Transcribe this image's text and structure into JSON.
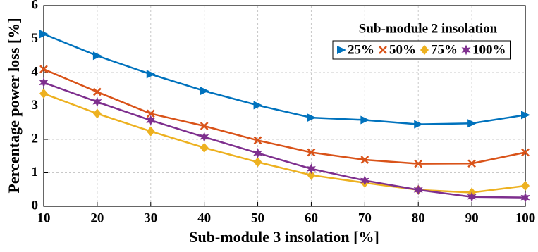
{
  "chart_data": {
    "type": "line",
    "x_label": "Sub-module 3 insolation [%]",
    "y_label": "Percentage power loss [%]",
    "legend_title": "Sub-module 2 insolation",
    "legend_title_color": "#0000e6",
    "x": [
      10,
      20,
      30,
      40,
      50,
      60,
      70,
      80,
      90,
      100
    ],
    "series": [
      {
        "name": "25%",
        "color": "#0072bd",
        "marker": "triangle",
        "values": [
          5.15,
          4.5,
          3.95,
          3.45,
          3.02,
          2.65,
          2.58,
          2.45,
          2.48,
          2.73
        ]
      },
      {
        "name": "50%",
        "color": "#d95319",
        "marker": "x",
        "values": [
          4.1,
          3.42,
          2.77,
          2.4,
          1.97,
          1.61,
          1.39,
          1.27,
          1.28,
          1.61
        ]
      },
      {
        "name": "75%",
        "color": "#edb120",
        "marker": "diamond",
        "values": [
          3.37,
          2.77,
          2.24,
          1.75,
          1.32,
          0.93,
          0.7,
          0.49,
          0.41,
          0.61
        ]
      },
      {
        "name": "100%",
        "color": "#7e2f8e",
        "marker": "star",
        "values": [
          3.7,
          3.12,
          2.57,
          2.07,
          1.59,
          1.12,
          0.77,
          0.49,
          0.28,
          0.26
        ]
      }
    ],
    "xlim": [
      10,
      100
    ],
    "xticks": [
      10,
      20,
      30,
      40,
      50,
      60,
      70,
      80,
      90,
      100
    ],
    "ylim": [
      0,
      6
    ],
    "yticks": [
      0,
      1,
      2,
      3,
      4,
      5,
      6
    ],
    "grid": true
  }
}
